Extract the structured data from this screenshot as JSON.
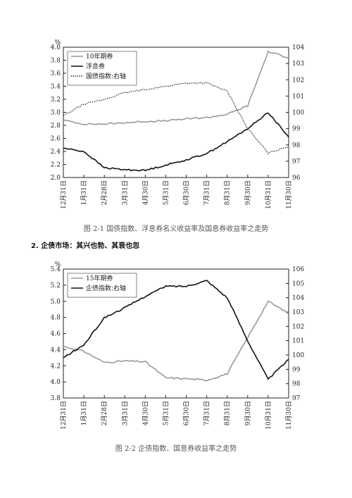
{
  "charts": {
    "chart1_caption": "图 2-1  国债指数、浮息券名义收益率及国息券收益率之走势",
    "section_heading": "2. 企债市场：其兴也勃、其衰也忽",
    "chart2_caption": "图 2-2  企债指数、国息券收益率之走势"
  },
  "chart_data": [
    {
      "type": "line",
      "title": "",
      "yunit": "%",
      "categories": [
        "12月31日",
        "1月31日",
        "2月28日",
        "3月31日",
        "4月30日",
        "5月31日",
        "6月30日",
        "7月31日",
        "8月31日",
        "9月30日",
        "10月31日",
        "11月30日"
      ],
      "ylim": [
        2.0,
        4.0
      ],
      "yticks": [
        "2.0",
        "2.2",
        "2.4",
        "2.6",
        "2.8",
        "3.0",
        "3.2",
        "3.4",
        "3.6",
        "3.8",
        "4.0"
      ],
      "y2lim": [
        96,
        104
      ],
      "y2ticks": [
        "96",
        "97",
        "98",
        "99",
        "100",
        "101",
        "102",
        "103",
        "104"
      ],
      "grid": false,
      "legend_position": "top-left",
      "series": [
        {
          "name": "10年期券",
          "axis": "left",
          "color": "#999999",
          "style": "solid",
          "values": [
            2.88,
            2.82,
            2.82,
            2.84,
            2.86,
            2.87,
            2.9,
            2.92,
            2.97,
            3.1,
            3.93,
            3.84
          ]
        },
        {
          "name": "浮息券",
          "axis": "left",
          "color": "#111111",
          "style": "solid",
          "values": [
            2.45,
            2.4,
            2.15,
            2.12,
            2.11,
            2.19,
            2.27,
            2.37,
            2.55,
            2.75,
            3.0,
            2.62
          ]
        },
        {
          "name": "国债指数:右轴",
          "axis": "right",
          "color": "#111111",
          "style": "dotted",
          "values": [
            99.8,
            100.5,
            100.8,
            101.2,
            101.4,
            101.6,
            101.8,
            101.8,
            101.3,
            99.0,
            97.5,
            97.9
          ]
        }
      ]
    },
    {
      "type": "line",
      "title": "",
      "yunit": "%",
      "categories": [
        "12月31日",
        "1月31日",
        "2月28日",
        "3月31日",
        "4月30日",
        "5月31日",
        "6月30日",
        "7月31日",
        "8月31日",
        "9月30日",
        "10月31日",
        "11月30日"
      ],
      "ylim": [
        3.8,
        5.4
      ],
      "yticks": [
        "3.8",
        "4.0",
        "4.2",
        "4.4",
        "4.6",
        "4.8",
        "5.0",
        "5.2",
        "5.4"
      ],
      "y2lim": [
        97,
        106
      ],
      "y2ticks": [
        "97",
        "98",
        "99",
        "100",
        "101",
        "102",
        "103",
        "104",
        "105",
        "106"
      ],
      "grid": false,
      "legend_position": "top-left",
      "series": [
        {
          "name": "15年期券",
          "axis": "left",
          "color": "#999999",
          "style": "solid",
          "values": [
            4.44,
            4.38,
            4.24,
            4.26,
            4.25,
            4.05,
            4.04,
            4.02,
            4.1,
            4.55,
            5.0,
            4.85
          ]
        },
        {
          "name": "企债指数:右轴",
          "axis": "right",
          "color": "#111111",
          "style": "solid",
          "values": [
            99.8,
            100.7,
            102.6,
            103.3,
            104.1,
            104.8,
            104.8,
            105.2,
            104.0,
            101.0,
            98.3,
            99.7
          ]
        }
      ]
    }
  ]
}
